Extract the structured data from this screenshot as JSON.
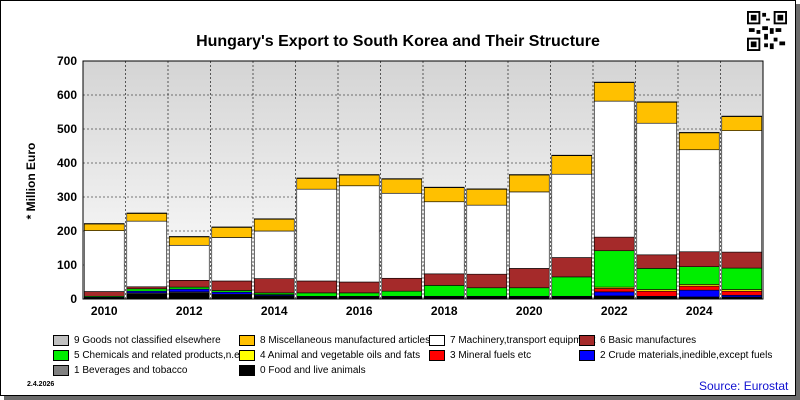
{
  "chart_data": {
    "type": "bar",
    "stacked": true,
    "title": "Hungary's Export to South Korea and Their Structure",
    "ylabel": "* Million Euro",
    "xlabel": "",
    "ylim": [
      0,
      700
    ],
    "yticks": [
      0,
      100,
      200,
      300,
      400,
      500,
      600,
      700
    ],
    "xtick_labels": [
      "2010",
      "2012",
      "2014",
      "2016",
      "2018",
      "2020",
      "2022",
      "2024"
    ],
    "grid": true,
    "legend_position": "bottom",
    "categories": [
      "2010",
      "2011",
      "2012",
      "2013",
      "2014",
      "2015",
      "2016",
      "2017",
      "2018",
      "2019",
      "2020",
      "2021",
      "2022",
      "2023",
      "2024",
      "2025"
    ],
    "series": [
      {
        "name": "0 Food and live animals",
        "color": "#000000",
        "values": [
          2,
          15,
          18,
          12,
          8,
          5,
          5,
          5,
          5,
          5,
          5,
          5,
          8,
          5,
          5,
          5
        ]
      },
      {
        "name": "1 Beverages and tobacco",
        "color": "#808080",
        "values": [
          1,
          3,
          3,
          2,
          2,
          1,
          1,
          1,
          1,
          1,
          1,
          1,
          1,
          1,
          1,
          1
        ]
      },
      {
        "name": "2 Crude materials,inedible,except fuels",
        "color": "#0000ff",
        "values": [
          2,
          5,
          8,
          6,
          3,
          2,
          2,
          2,
          2,
          2,
          2,
          2,
          12,
          2,
          20,
          5
        ]
      },
      {
        "name": "3 Mineral fuels etc",
        "color": "#ff0000",
        "values": [
          0,
          0,
          0,
          0,
          0,
          0,
          0,
          0,
          0,
          0,
          0,
          0,
          10,
          15,
          12,
          12
        ]
      },
      {
        "name": "4 Animal and vegetable oils and fats",
        "color": "#ffff00",
        "values": [
          0,
          0,
          0,
          0,
          0,
          0,
          0,
          0,
          0,
          0,
          0,
          0,
          4,
          5,
          5,
          5
        ]
      },
      {
        "name": "5 Chemicals and related products,n.e.s.",
        "color": "#00ee00",
        "values": [
          3,
          7,
          6,
          5,
          5,
          10,
          10,
          15,
          32,
          25,
          25,
          57,
          107,
          62,
          52,
          63
        ]
      },
      {
        "name": "6 Basic manufactures",
        "color": "#a52a2a",
        "values": [
          14,
          6,
          20,
          28,
          42,
          35,
          32,
          38,
          34,
          40,
          57,
          57,
          40,
          40,
          44,
          47
        ]
      },
      {
        "name": "7 Machinery,transport equipment",
        "color": "#ffffff",
        "values": [
          179,
          193,
          103,
          128,
          140,
          270,
          283,
          250,
          212,
          203,
          225,
          245,
          400,
          387,
          300,
          357
        ]
      },
      {
        "name": "8 Miscellaneous manufactured articles",
        "color": "#ffc000",
        "values": [
          20,
          23,
          25,
          30,
          35,
          32,
          32,
          42,
          42,
          47,
          50,
          55,
          55,
          62,
          50,
          42
        ]
      },
      {
        "name": "9 Goods not classified elsewhere",
        "color": "#c0c0c0",
        "values": [
          1,
          1,
          1,
          1,
          1,
          1,
          1,
          1,
          1,
          1,
          1,
          1,
          1,
          1,
          1,
          1
        ]
      }
    ]
  },
  "legend": [
    {
      "label": "9 Goods not classified elsewhere",
      "color": "#c0c0c0"
    },
    {
      "label": "8 Miscellaneous manufactured articles",
      "color": "#ffc000"
    },
    {
      "label": "7 Machinery,transport equipment",
      "color": "#ffffff"
    },
    {
      "label": "6 Basic manufactures",
      "color": "#a52a2a"
    },
    {
      "label": "5 Chemicals and related products,n.e.s.",
      "color": "#00ee00"
    },
    {
      "label": "4 Animal and vegetable oils and fats",
      "color": "#ffff00"
    },
    {
      "label": "3 Mineral fuels etc",
      "color": "#ff0000"
    },
    {
      "label": "2 Crude materials,inedible,except fuels",
      "color": "#0000ff"
    },
    {
      "label": "1 Beverages and tobacco",
      "color": "#808080"
    },
    {
      "label": "0 Food and live animals",
      "color": "#000000"
    }
  ],
  "footer": {
    "date": "2.4.2026",
    "source": "Source: Eurostat"
  },
  "qr_icon": "qr-code-icon"
}
